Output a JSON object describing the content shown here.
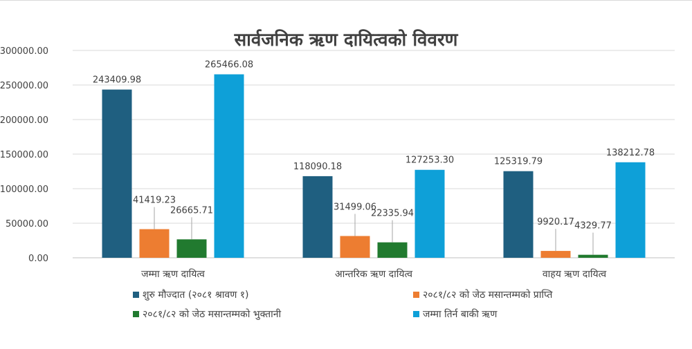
{
  "chart_data": {
    "type": "bar",
    "title": "सार्वजनिक ऋण दायित्वको विवरण",
    "categories": [
      "जम्मा ऋण दायित्व",
      "आन्तरिक ऋण दायित्व",
      "वाहय ऋण दायित्व"
    ],
    "ylim": [
      0,
      300000
    ],
    "yticks": [
      "0.00",
      "50000.00",
      "100000.00",
      "150000.00",
      "200000.00",
      "250000.00",
      "300000.00"
    ],
    "grid": true,
    "legend_position": "bottom",
    "series": [
      {
        "name": "शुरु मौज्दात (२०८१ श्रावण १)",
        "color": "#1f5f80",
        "values": [
          243409.98,
          118090.18,
          125319.79
        ],
        "labels": [
          "243409.98",
          "118090.18",
          "125319.79"
        ]
      },
      {
        "name": "२०८१/८२ को जेठ मसान्तम्मको प्राप्ति",
        "color": "#ed7d31",
        "values": [
          41419.23,
          31499.06,
          9920.17
        ],
        "labels": [
          "41419.23",
          "31499.06",
          "9920.17"
        ]
      },
      {
        "name": "२०८१/८२ को जेठ मसान्तम्मको भुक्तानी",
        "color": "#217a2f",
        "values": [
          26665.71,
          22335.94,
          4329.77
        ],
        "labels": [
          "26665.71",
          "22335.94",
          "4329.77"
        ]
      },
      {
        "name": "जम्मा तिर्न बाकी ऋण",
        "color": "#0ea0d8",
        "values": [
          265466.08,
          127253.3,
          138212.78
        ],
        "labels": [
          "265466.08",
          "127253.30",
          "138212.78"
        ]
      }
    ]
  }
}
